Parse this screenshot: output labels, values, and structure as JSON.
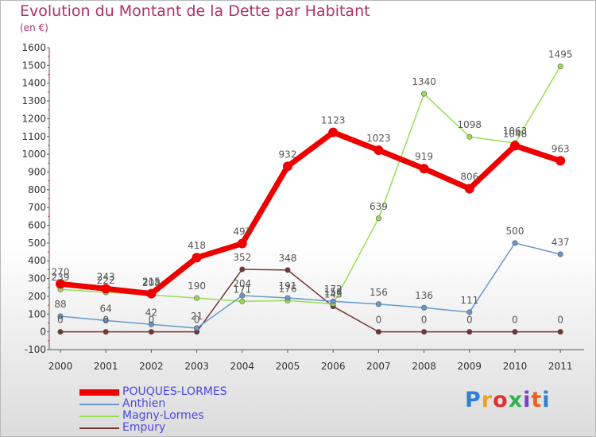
{
  "chart_data": {
    "type": "line",
    "title": "Evolution du Montant de la Dette par Habitant",
    "subtitle": "(en €)",
    "x": [
      "2000",
      "2001",
      "2002",
      "2003",
      "2004",
      "2005",
      "2006",
      "2007",
      "2008",
      "2009",
      "2010",
      "2011"
    ],
    "ylim": [
      -100,
      1600
    ],
    "yticks": [
      -100,
      0,
      100,
      200,
      300,
      400,
      500,
      600,
      700,
      800,
      900,
      1000,
      1100,
      1200,
      1300,
      1400,
      1500,
      1600
    ],
    "grid": false,
    "legend_position": "bottom-left",
    "series": [
      {
        "name": "POUQUES-LORMES",
        "color": "#ee0000",
        "values": [
          270,
          243,
          215,
          418,
          497,
          932,
          1123,
          1023,
          919,
          806,
          1048,
          963
        ]
      },
      {
        "name": "Anthien",
        "color": "#6699cc",
        "values": [
          88,
          64,
          42,
          21,
          204,
          191,
          172,
          156,
          136,
          111,
          500,
          437
        ]
      },
      {
        "name": "Magny-Lormes",
        "color": "#99dd55",
        "values": [
          239,
          222,
          208,
          190,
          171,
          176,
          158,
          639,
          1340,
          1098,
          1063,
          1495
        ]
      },
      {
        "name": "Empury",
        "color": "#773333",
        "values": [
          0,
          0,
          0,
          0,
          352,
          348,
          143,
          0,
          0,
          0,
          0,
          0
        ]
      }
    ]
  },
  "logo": {
    "text": "Proxiti",
    "colors": [
      "#2e7fd6",
      "#f0a020",
      "#e03030",
      "#30b050",
      "#7a40c0",
      "#ee6020",
      "#3080d0"
    ]
  }
}
